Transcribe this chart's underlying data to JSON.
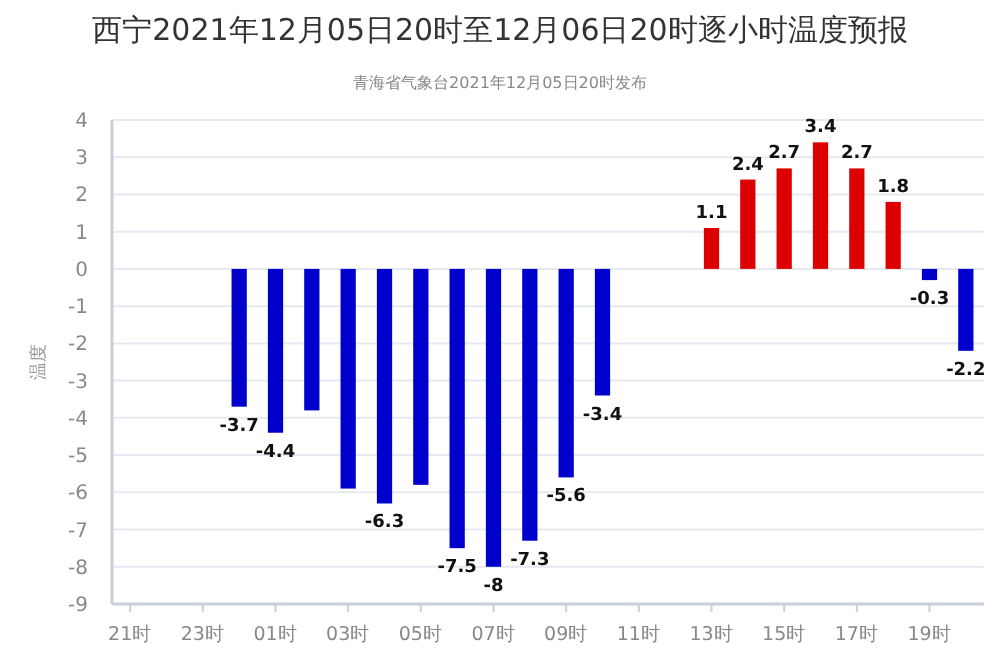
{
  "chart_data": {
    "type": "bar",
    "title": "西宁2021年12月05日20时至12月06日20时逐小时温度预报",
    "subtitle": "青海省气象台2021年12月05日20时发布",
    "ylabel": "温度",
    "categories": [
      "21时",
      null,
      "23时",
      null,
      "01时",
      null,
      "03时",
      null,
      "05时",
      null,
      "07时",
      null,
      "09时",
      null,
      "11时",
      null,
      "13时",
      null,
      "15时",
      null,
      "17时",
      null,
      "19时",
      null
    ],
    "values": [
      null,
      null,
      null,
      -3.7,
      -4.4,
      -3.8,
      -5.9,
      -6.3,
      -5.8,
      -7.5,
      -8,
      -7.3,
      -5.6,
      -3.4,
      null,
      null,
      1.1,
      2.4,
      2.7,
      3.4,
      2.7,
      1.8,
      -0.3,
      -2.2
    ],
    "value_labels": [
      null,
      null,
      null,
      "-3.7",
      "-4.4",
      null,
      null,
      "-6.3",
      null,
      "-7.5",
      "-8",
      "-7.3",
      "-5.6",
      "-3.4",
      null,
      null,
      "1.1",
      "2.4",
      "2.7",
      "3.4",
      "2.7",
      "1.8",
      "-0.3",
      "-2.2"
    ],
    "colors": [
      null,
      null,
      null,
      "#0000cc",
      "#0000cc",
      "#0000cc",
      "#0000cc",
      "#0000cc",
      "#0000cc",
      "#0000cc",
      "#0000cc",
      "#0000cc",
      "#0000cc",
      "#0000cc",
      null,
      null,
      "#dd0000",
      "#dd0000",
      "#dd0000",
      "#dd0000",
      "#dd0000",
      "#dd0000",
      "#0000cc",
      "#0000cc"
    ],
    "ylim": [
      -9,
      4
    ],
    "yticks": [
      -9,
      -8,
      -7,
      -6,
      -5,
      -4,
      -3,
      -2,
      -1,
      0,
      1,
      2,
      3,
      4
    ],
    "grid": "y"
  }
}
